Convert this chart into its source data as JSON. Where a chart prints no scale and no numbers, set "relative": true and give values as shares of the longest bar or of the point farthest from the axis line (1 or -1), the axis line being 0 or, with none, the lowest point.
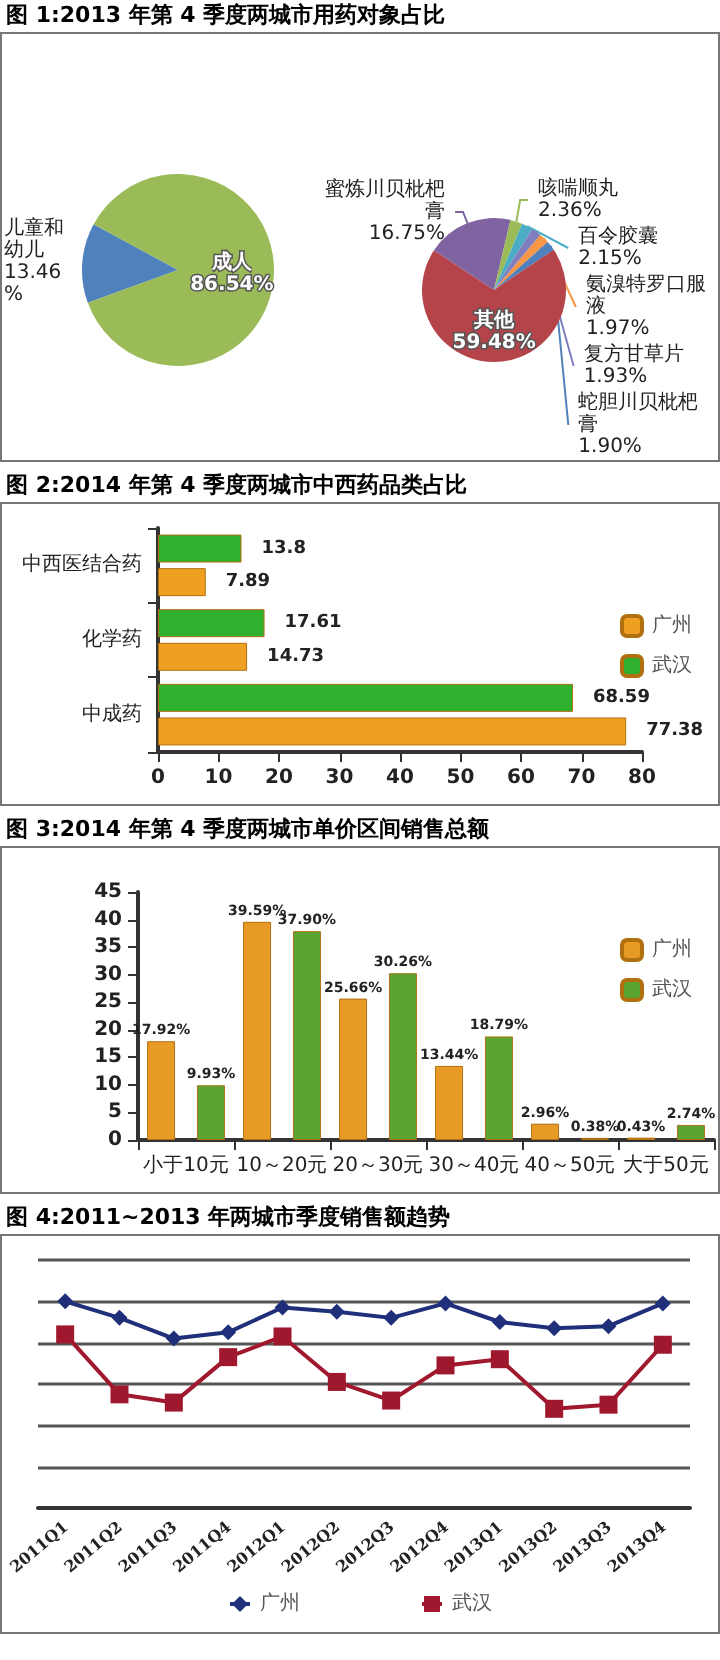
{
  "chart_data": [
    {
      "type": "pie",
      "title": "图 1:2013 年第 4 季度两城市用药对象占比",
      "categories": [
        "儿童和幼儿",
        "成人"
      ],
      "values": [
        13.46,
        86.54
      ],
      "colors": [
        "#4f81bd",
        "#9bbb59"
      ],
      "value_labels": [
        "13.46%",
        "86.54%"
      ]
    },
    {
      "type": "pie",
      "categories": [
        "氨溴特罗口服液",
        "蛇胆川贝枇杷膏",
        "其他",
        "蜜炼川贝枇杷膏",
        "咳喘顺丸",
        "百令胶囊",
        "复方甘草片"
      ],
      "values": [
        1.97,
        1.9,
        59.48,
        16.75,
        2.36,
        2.15,
        1.93
      ],
      "colors": [
        "#f79646",
        "#4f81bd",
        "#b5444a",
        "#8064a2",
        "#9bbb59",
        "#4bacc6",
        "#7f7fbf"
      ],
      "value_labels": [
        "1.97%",
        "1.90%",
        "59.48%",
        "16.75%",
        "2.36%",
        "2.15%",
        "1.93%"
      ]
    },
    {
      "type": "bar",
      "orientation": "horizontal",
      "title": "图 2:2014 年第 4 季度两城市中西药品类占比",
      "categories": [
        "中西医结合药",
        "化学药",
        "中成药"
      ],
      "series": [
        {
          "name": "广州",
          "color": "#f0a020",
          "values": [
            7.89,
            14.73,
            77.38
          ]
        },
        {
          "name": "武汉",
          "color": "#2fb02f",
          "values": [
            13.8,
            17.61,
            68.59
          ]
        }
      ],
      "xlim": [
        0,
        80
      ],
      "xticks": [
        0,
        10,
        20,
        30,
        40,
        50,
        60,
        70,
        80
      ],
      "data_labels": true,
      "legend": "right"
    },
    {
      "type": "bar",
      "title": "图 3:2014 年第 4 季度两城市单价区间销售总额",
      "categories": [
        "小于10元",
        "10～20元",
        "20～30元",
        "30～40元",
        "40～50元",
        "大于50元"
      ],
      "series": [
        {
          "name": "广州",
          "color": "#e89a26",
          "values": [
            17.92,
            39.59,
            25.66,
            13.44,
            2.96,
            0.43
          ],
          "value_labels": [
            "17.92%",
            "39.59%",
            "25.66%",
            "13.44%",
            "2.96%",
            "0.43%"
          ]
        },
        {
          "name": "武汉",
          "color": "#5aa532",
          "values": [
            9.93,
            37.9,
            30.26,
            18.79,
            0.38,
            2.74
          ],
          "value_labels": [
            "9.93%",
            "37.90%",
            "30.26%",
            "18.79%",
            "0.38%",
            "2.74%"
          ]
        }
      ],
      "ylim": [
        0,
        45
      ],
      "yticks": [
        0,
        5,
        10,
        15,
        20,
        25,
        30,
        35,
        40,
        45
      ],
      "legend": "right"
    },
    {
      "type": "line",
      "title": "图 4:2011~2013 年两城市季度销售额趋势",
      "relative": true,
      "grid": "y",
      "legend": "bottom",
      "categories": [
        "2011Q1",
        "2011Q2",
        "2011Q3",
        "2011Q4",
        "2012Q1",
        "2012Q2",
        "2012Q3",
        "2012Q4",
        "2013Q1",
        "2013Q2",
        "2013Q3",
        "2013Q4"
      ],
      "series": [
        {
          "name": "广州",
          "color": "#1f2f7a",
          "marker": "diamond",
          "values": [
            1,
            0.92,
            0.82,
            0.85,
            0.97,
            0.95,
            0.92,
            0.99,
            0.9,
            0.87,
            0.88,
            0.99
          ]
        },
        {
          "name": "武汉",
          "color": "#a0182e",
          "marker": "square",
          "values": [
            0.84,
            0.55,
            0.51,
            0.73,
            0.83,
            0.61,
            0.52,
            0.69,
            0.72,
            0.48,
            0.5,
            0.79
          ]
        }
      ]
    }
  ]
}
